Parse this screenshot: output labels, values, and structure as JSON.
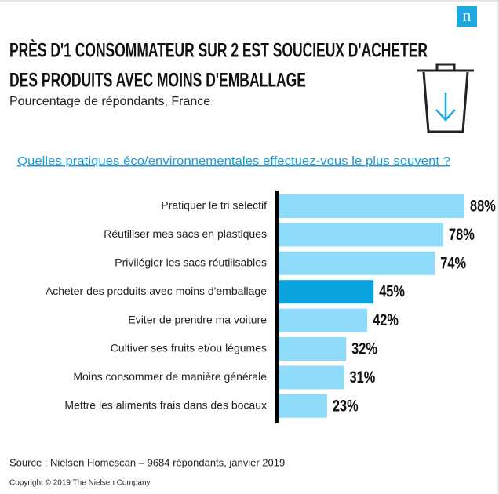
{
  "chart_data": {
    "type": "bar",
    "orientation": "horizontal",
    "logo": "n",
    "title": [
      "PRÈS D'1 CONSOMMATEUR SUR 2 EST SOUCIEUX D'ACHETER",
      "DES PRODUITS AVEC MOINS D'EMBALLAGE"
    ],
    "subtitle": "Pourcentage de répondants, France",
    "question": "Quelles pratiques éco/environnementales effectuez-vous le plus souvent ?",
    "categories": [
      "Pratiquer le tri sélectif",
      "Réutiliser mes sacs en plastiques",
      "Privilégier les sacs réutilisables",
      "Acheter des produits avec moins d'emballage",
      "Eviter de prendre ma voiture",
      "Cultiver ses fruits et/ou légumes",
      "Moins consommer de manière générale",
      "Mettre les aliments frais dans des bocaux"
    ],
    "values": [
      88,
      78,
      74,
      45,
      42,
      32,
      31,
      23
    ],
    "value_labels": [
      "88%",
      "78%",
      "74%",
      "45%",
      "42%",
      "32%",
      "31%",
      "23%"
    ],
    "colors": [
      "#8fdcfa",
      "#8fdcfa",
      "#8fdcfa",
      "#0aa3df",
      "#8fdcfa",
      "#8fdcfa",
      "#8fdcfa",
      "#8fdcfa"
    ],
    "source": "Source : Nielsen Homescan – 9684 répondants, janvier 2019",
    "copyright": "Copyright © 2019 The Nielsen Company"
  }
}
